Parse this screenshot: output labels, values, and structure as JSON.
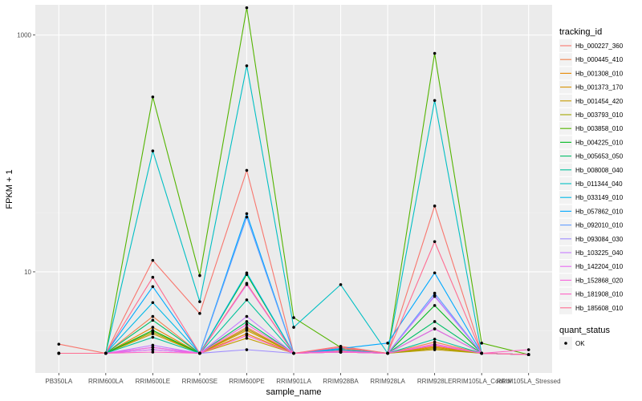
{
  "chart_data": {
    "type": "line",
    "xlabel": "sample_name",
    "ylabel": "FPKM + 1",
    "y_scale": "log10",
    "ylim": [
      1.4,
      1800
    ],
    "y_ticks": [
      {
        "value": 10,
        "label": "10"
      },
      {
        "value": 1000,
        "label": "1000"
      }
    ],
    "grid": true,
    "legend_position": "right",
    "categories": [
      "PB350LA",
      "RRIM600LA",
      "RRIM600LE",
      "RRIM600SE",
      "RRIM600PE",
      "RRIM901LA",
      "RRIM928BA",
      "RRIM928LA",
      "RRIM928LE",
      "RRIM105LA_Control",
      "RRIM105LA_Stressed"
    ],
    "series": [
      {
        "name": "Hb_000227_360",
        "color": "#F8766D",
        "values": [
          2.45,
          2.05,
          12.5,
          4.45,
          72,
          2.05,
          2.35,
          2.05,
          36,
          2.05,
          2.0
        ]
      },
      {
        "name": "Hb_000445_410",
        "color": "#F07F4B",
        "values": [
          2.05,
          2.05,
          4.2,
          2.05,
          3.4,
          2.05,
          2.25,
          2.05,
          2.55,
          2.05,
          2.0
        ]
      },
      {
        "name": "Hb_001308_010",
        "color": "#E58700",
        "values": [
          2.05,
          2.05,
          3.4,
          2.05,
          3.0,
          2.05,
          2.2,
          2.05,
          2.35,
          2.05,
          2.0
        ]
      },
      {
        "name": "Hb_001373_170",
        "color": "#D69100",
        "values": [
          2.05,
          2.05,
          3.2,
          2.05,
          3.2,
          2.05,
          2.15,
          2.05,
          2.3,
          2.05,
          2.0
        ]
      },
      {
        "name": "Hb_001454_420",
        "color": "#C49A00",
        "values": [
          2.05,
          2.05,
          3.0,
          2.05,
          2.75,
          2.05,
          2.1,
          2.05,
          2.2,
          2.05,
          2.0
        ]
      },
      {
        "name": "Hb_003793_010",
        "color": "#A3A500",
        "values": [
          2.05,
          2.05,
          3.1,
          2.05,
          3.3,
          2.05,
          2.15,
          2.05,
          2.25,
          2.05,
          2.0
        ]
      },
      {
        "name": "Hb_003858_010",
        "color": "#53B400",
        "values": [
          2.05,
          2.05,
          300,
          9.3,
          1700,
          4.1,
          2.3,
          2.05,
          700,
          2.5,
          2.0
        ]
      },
      {
        "name": "Hb_004225_010",
        "color": "#00B81F",
        "values": [
          2.05,
          2.05,
          3.2,
          2.05,
          9.5,
          2.05,
          2.2,
          2.05,
          5.2,
          2.05,
          2.0
        ]
      },
      {
        "name": "Hb_005653_050",
        "color": "#00BE67",
        "values": [
          2.05,
          2.05,
          3.9,
          2.05,
          3.8,
          2.05,
          2.2,
          2.05,
          3.8,
          2.05,
          2.0
        ]
      },
      {
        "name": "Hb_008008_040",
        "color": "#00C19A",
        "values": [
          2.05,
          2.05,
          2.8,
          2.05,
          5.8,
          2.05,
          2.1,
          2.05,
          2.7,
          2.05,
          2.0
        ]
      },
      {
        "name": "Hb_011344_040",
        "color": "#00BFC4",
        "values": [
          2.05,
          2.05,
          105,
          5.6,
          550,
          3.4,
          7.8,
          2.05,
          280,
          2.05,
          2.0
        ]
      },
      {
        "name": "Hb_033149_010",
        "color": "#00B8E7",
        "values": [
          2.05,
          2.05,
          5.5,
          2.05,
          9.8,
          2.05,
          2.2,
          2.05,
          3.3,
          2.05,
          2.0
        ]
      },
      {
        "name": "Hb_057862_010",
        "color": "#00A9FF",
        "values": [
          2.05,
          2.05,
          7.5,
          2.05,
          31,
          2.05,
          2.25,
          2.5,
          9.8,
          2.05,
          2.0
        ]
      },
      {
        "name": "Hb_092010_010",
        "color": "#619CFF",
        "values": [
          2.05,
          2.05,
          2.2,
          2.05,
          29,
          2.05,
          2.1,
          2.05,
          6.6,
          2.05,
          2.0
        ]
      },
      {
        "name": "Hb_093084_030",
        "color": "#9F8CFF",
        "values": [
          2.05,
          2.05,
          2.3,
          2.05,
          2.2,
          2.05,
          2.1,
          2.05,
          6.3,
          2.05,
          2.0
        ]
      },
      {
        "name": "Hb_103225_040",
        "color": "#C77CFF",
        "values": [
          2.05,
          2.05,
          2.4,
          2.05,
          4.2,
          2.05,
          2.1,
          2.05,
          6.2,
          2.05,
          2.0
        ]
      },
      {
        "name": "Hb_142204_010",
        "color": "#E76BF3",
        "values": [
          2.05,
          2.05,
          2.2,
          2.05,
          7.8,
          2.05,
          2.1,
          2.05,
          2.4,
          2.05,
          2.0
        ]
      },
      {
        "name": "Hb_152868_020",
        "color": "#F862DC",
        "values": [
          2.05,
          2.05,
          2.3,
          2.05,
          3.6,
          2.05,
          2.15,
          2.05,
          3.3,
          2.05,
          2.0
        ]
      },
      {
        "name": "Hb_181908_010",
        "color": "#FF61C3",
        "values": [
          2.05,
          2.05,
          2.1,
          2.05,
          2.9,
          2.05,
          2.1,
          2.05,
          2.45,
          2.05,
          2.2
        ]
      },
      {
        "name": "Hb_185608_010",
        "color": "#FF6C91",
        "values": [
          2.05,
          2.05,
          9.0,
          2.05,
          8.0,
          2.05,
          2.3,
          2.05,
          18,
          2.05,
          2.0
        ]
      }
    ],
    "legend": {
      "title": "tracking_id",
      "shape_title": "quant_status",
      "shape_label": "OK"
    }
  }
}
